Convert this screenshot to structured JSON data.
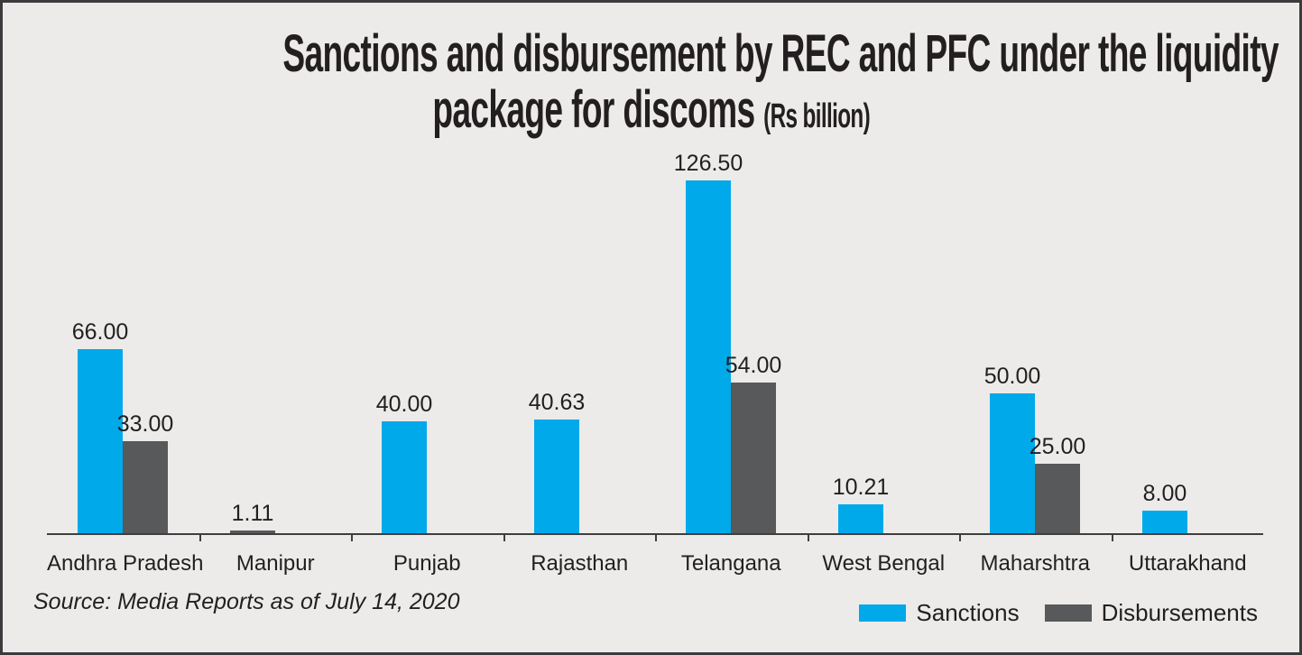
{
  "frame": {
    "background": "#ECEBE9",
    "border_color": "#3B3B3D"
  },
  "title": {
    "line1": "Sanctions and disbursement by REC and PFC under the liquidity",
    "line2": "package for discoms",
    "unit": "(Rs billion)"
  },
  "source": "Source: Media Reports as of July 14, 2020",
  "legend": {
    "items": [
      {
        "label": "Sanctions",
        "color": "#00A9E9"
      },
      {
        "label": "Disbursements",
        "color": "#58595B"
      }
    ]
  },
  "chart_data": {
    "type": "bar",
    "title": "Sanctions and disbursement by REC and PFC under the liquidity package for discoms (Rs billion)",
    "categories": [
      "Andhra Pradesh",
      "Manipur",
      "Punjab",
      "Rajasthan",
      "Telangana",
      "West Bengal",
      "Maharshtra",
      "Uttarakhand"
    ],
    "series": [
      {
        "name": "Sanctions",
        "color": "#00A9E9",
        "values": [
          66.0,
          null,
          40.0,
          40.63,
          126.5,
          10.21,
          50.0,
          8.0
        ]
      },
      {
        "name": "Disbursements",
        "color": "#58595B",
        "values": [
          33.0,
          1.11,
          null,
          null,
          54.0,
          null,
          25.0,
          null
        ]
      }
    ],
    "value_labels": {
      "Sanctions": [
        "66.00",
        null,
        "40.00",
        "40.63",
        "126.50",
        "10.21",
        "50.00",
        "8.00"
      ],
      "Disbursements": [
        "33.00",
        "1.11",
        null,
        null,
        "54.00",
        null,
        "25.00",
        null
      ]
    },
    "ylabel": "",
    "xlabel": "",
    "unit": "Rs billion",
    "ylim": [
      0,
      140
    ],
    "grid": false,
    "y_axis_shown": false,
    "legend_position": "bottom-right",
    "source": "Source: Media Reports as of July 14, 2020"
  }
}
